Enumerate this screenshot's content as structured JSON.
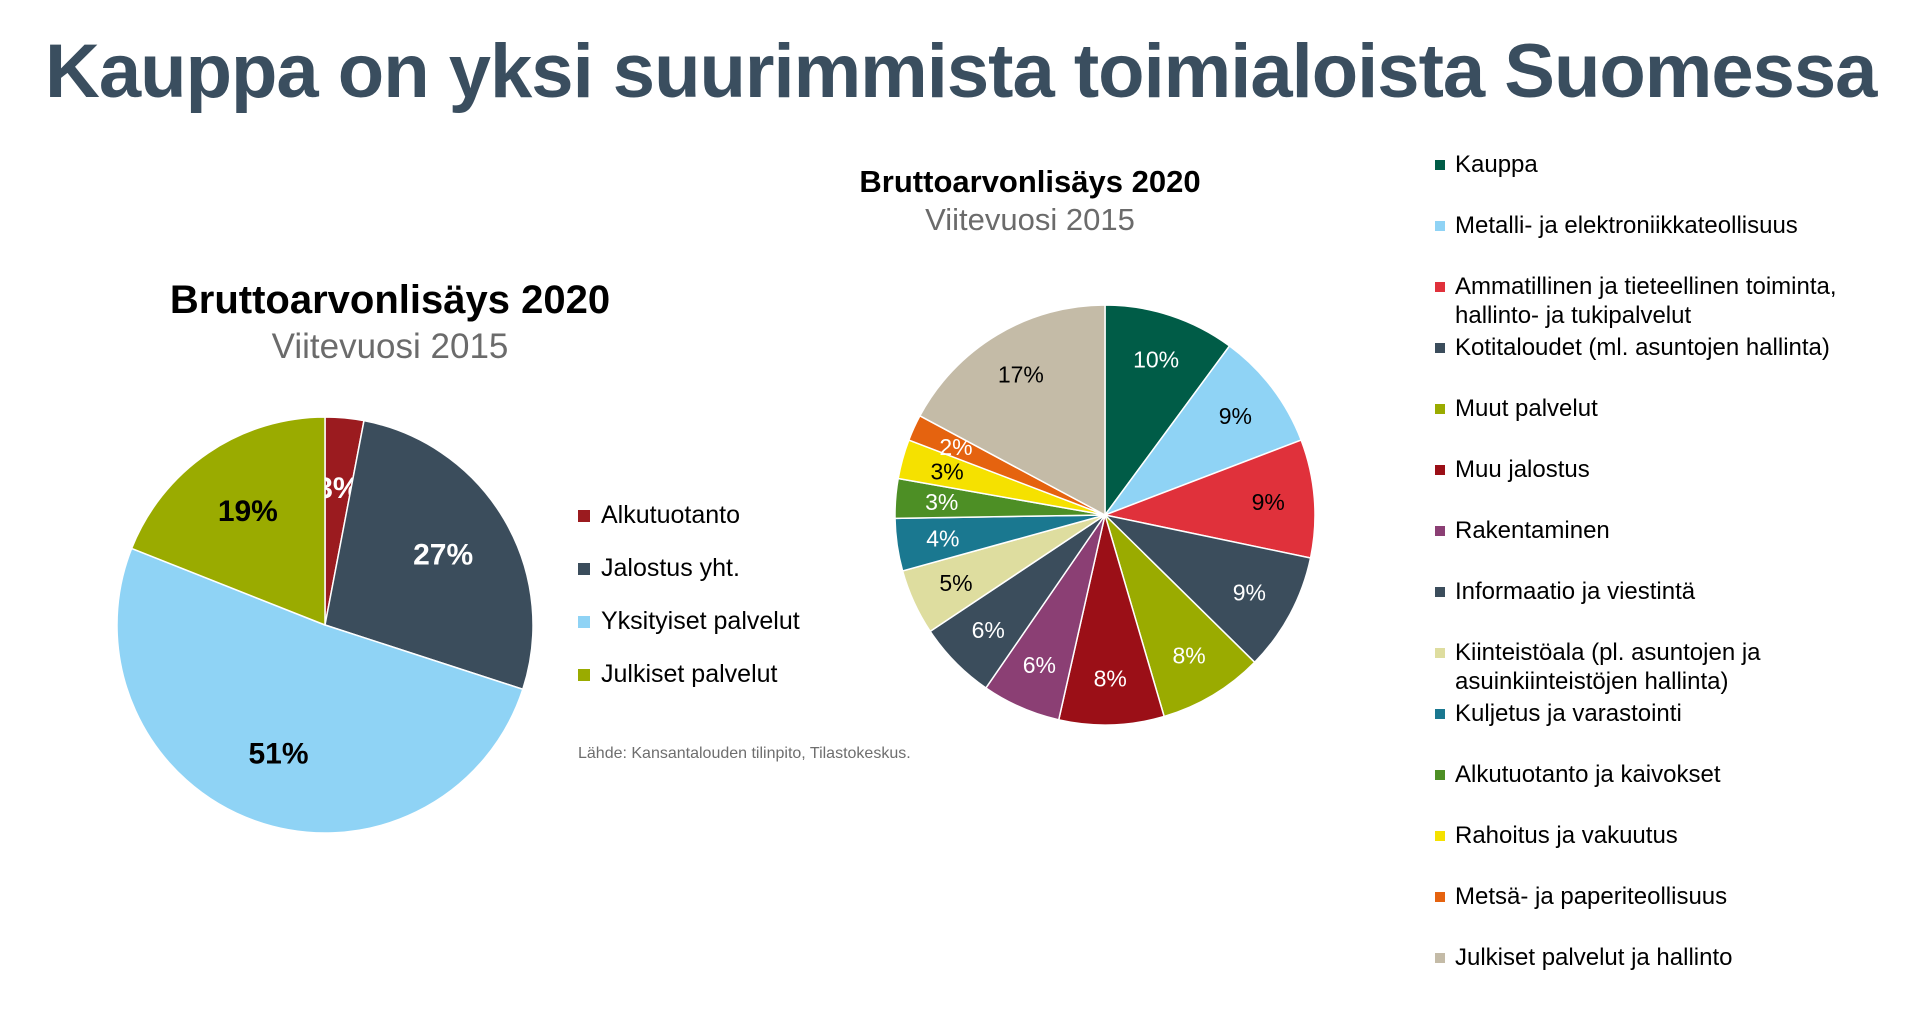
{
  "page": {
    "title": "Kauppa on yksi suurimmista toimialoista Suomessa",
    "source": "Lähde: Kansantalouden tilinpito, Tilastokeskus."
  },
  "chart_data": [
    {
      "type": "pie",
      "title": "Bruttoarvonlisäys 2020",
      "subtitle": "Viitevuosi 2015",
      "legend": "right",
      "label_style": "bold",
      "slices": [
        {
          "label": "Alkutuotanto",
          "value": 3,
          "display": "3%",
          "color": "#9b1b1f",
          "text_color": "#ffffff"
        },
        {
          "label": "Jalostus yht.",
          "value": 27,
          "display": "27%",
          "color": "#3b4d5c",
          "text_color": "#ffffff"
        },
        {
          "label": "Yksityiset palvelut",
          "value": 51,
          "display": "51%",
          "color": "#8fd3f5",
          "text_color": "#000000"
        },
        {
          "label": "Julkiset palvelut",
          "value": 19,
          "display": "19%",
          "color": "#9aab00",
          "text_color": "#000000"
        }
      ]
    },
    {
      "type": "pie",
      "title": "Bruttoarvonlisäys 2020",
      "subtitle": "Viitevuosi 2015",
      "legend": "right",
      "label_style": "normal",
      "slices": [
        {
          "label": "Kauppa",
          "value": 10,
          "display": "10%",
          "color": "#005c47",
          "text_color": "#ffffff"
        },
        {
          "label": "Metalli- ja elektroniikkateollisuus",
          "value": 9,
          "display": "9%",
          "color": "#8fd3f5",
          "text_color": "#000000"
        },
        {
          "label": "Ammatillinen ja tieteellinen toiminta, hallinto- ja tukipalvelut",
          "value": 9,
          "display": "9%",
          "color": "#e0313b",
          "text_color": "#000000"
        },
        {
          "label": "Kotitaloudet (ml. asuntojen hallinta)",
          "value": 9,
          "display": "9%",
          "color": "#3b4d5c",
          "text_color": "#ffffff"
        },
        {
          "label": "Muut palvelut",
          "value": 8,
          "display": "8%",
          "color": "#9aab00",
          "text_color": "#ffffff"
        },
        {
          "label": "Muu jalostus",
          "value": 8,
          "display": "8%",
          "color": "#9b0f17",
          "text_color": "#ffffff"
        },
        {
          "label": "Rakentaminen",
          "value": 6,
          "display": "6%",
          "color": "#8b3f74",
          "text_color": "#ffffff"
        },
        {
          "label": "Informaatio ja viestintä",
          "value": 6,
          "display": "6%",
          "color": "#3b4d5c",
          "text_color": "#ffffff"
        },
        {
          "label": "Kiinteistöala (pl. asuntojen ja asuinkiinteistöjen hallinta)",
          "value": 5,
          "display": "5%",
          "color": "#dedd9f",
          "text_color": "#000000"
        },
        {
          "label": "Kuljetus ja varastointi",
          "value": 4,
          "display": "4%",
          "color": "#1a7890",
          "text_color": "#ffffff"
        },
        {
          "label": "Alkutuotanto ja kaivokset",
          "value": 3,
          "display": "3%",
          "color": "#4d8f25",
          "text_color": "#ffffff"
        },
        {
          "label": "Rahoitus ja vakuutus",
          "value": 3,
          "display": "3%",
          "color": "#f5e100",
          "text_color": "#000000"
        },
        {
          "label": "Metsä- ja paperiteollisuus",
          "value": 2,
          "display": "2%",
          "color": "#e5630f",
          "text_color": "#ffffff"
        },
        {
          "label": "Julkiset palvelut ja hallinto",
          "value": 17,
          "display": "17%",
          "color": "#c4bba7",
          "text_color": "#000000"
        }
      ]
    }
  ]
}
